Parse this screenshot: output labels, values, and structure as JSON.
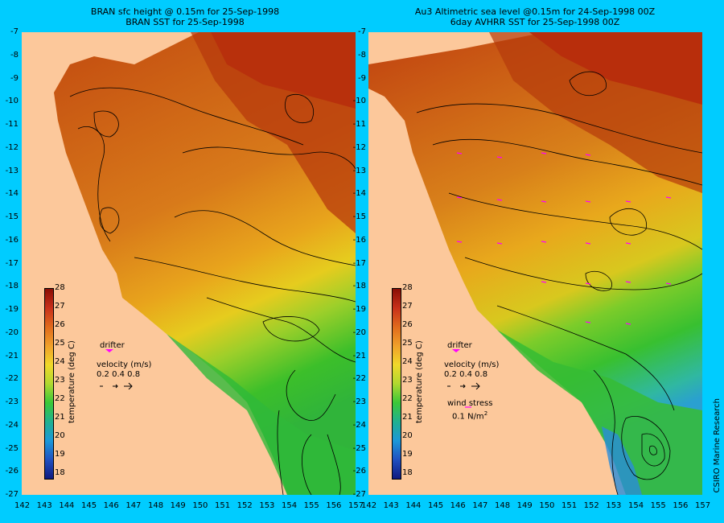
{
  "colors": {
    "land": "#fcc89b",
    "background": "#00ccff",
    "drifter": "#ff00ff"
  },
  "left_panel": {
    "title_line1": "BRAN sfc height @ 0.15m  for 25-Sep-1998",
    "title_line2": "BRAN SST for 25-Sep-1998"
  },
  "right_panel": {
    "title_line1": "Au3 Altimetric sea level  @0.15m  for 24-Sep-1998 00Z",
    "title_line2": "6day AVHRR SST for 25-Sep-1998 00Z"
  },
  "axes": {
    "y_ticks": [
      "-7",
      "-8",
      "-9",
      "-10",
      "-11",
      "-12",
      "-13",
      "-14",
      "-15",
      "-16",
      "-17",
      "-18",
      "-19",
      "-20",
      "-21",
      "-22",
      "-23",
      "-24",
      "-25",
      "-26",
      "-27"
    ],
    "x_ticks_left": [
      "142",
      "143",
      "144",
      "145",
      "146",
      "147",
      "148",
      "149",
      "150",
      "151",
      "152",
      "153",
      "154",
      "155",
      "156",
      "157"
    ],
    "x_ticks_right": [
      "142",
      "143",
      "144",
      "145",
      "146",
      "147",
      "148",
      "149",
      "150",
      "151",
      "152",
      "153",
      "154",
      "155",
      "156",
      "157"
    ]
  },
  "colorbar": {
    "title": "temperature (deg C)",
    "ticks": [
      "28",
      "27",
      "26",
      "25",
      "24",
      "23",
      "22",
      "21",
      "20",
      "19",
      "18"
    ]
  },
  "legend": {
    "drifter": "drifter",
    "velocity": "velocity (m/s)",
    "velocity_scale": "0.2 0.4 0.8",
    "wind_stress": "wind stress",
    "wind_value": "0.1 N/m",
    "wind_unit_sup": "2"
  },
  "credit": "CSIRO Marine Research"
}
